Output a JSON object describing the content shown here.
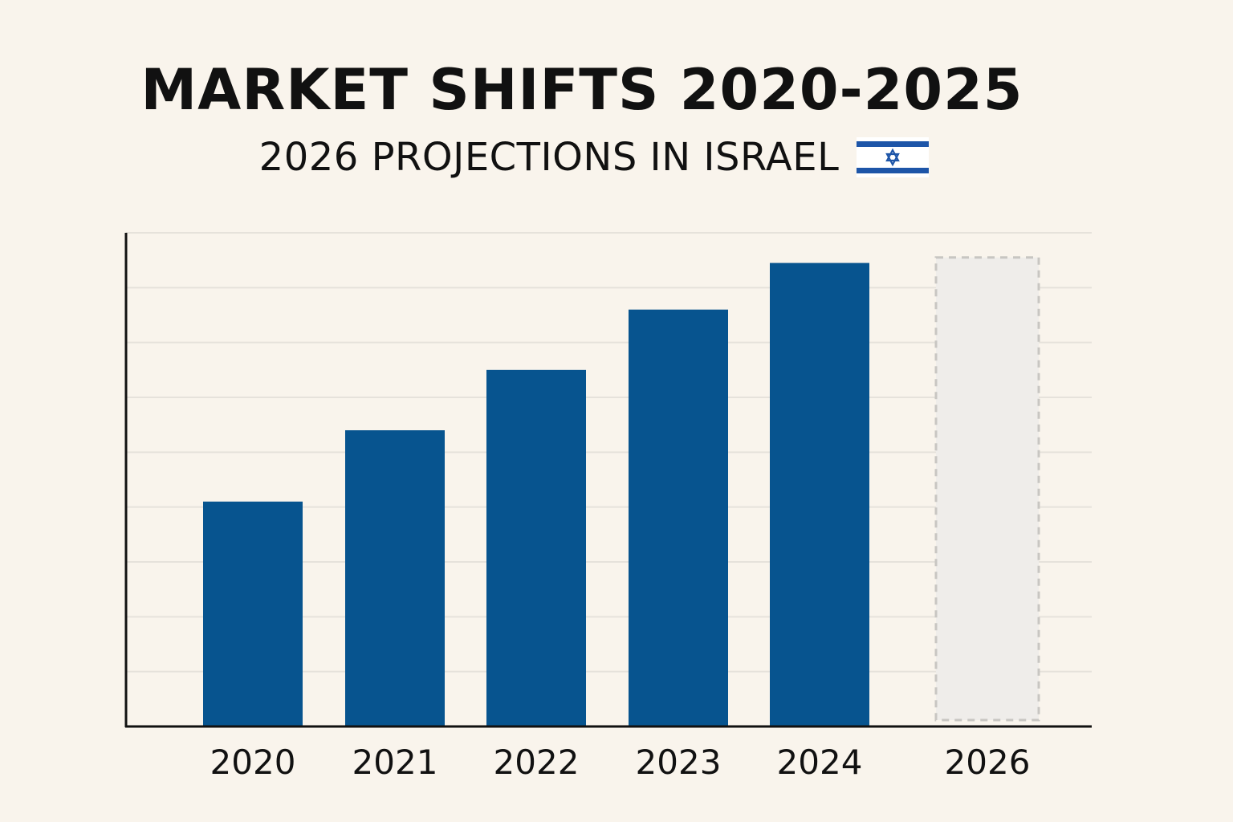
{
  "title": "MARKET SHIFTS 2020-2025",
  "subtitle": "2026 PROJECTIONS IN ISRAEL",
  "flag_icon": "israel-flag-icon",
  "colors": {
    "background": "#f9f4ec",
    "bar": "#07548f",
    "projection_fill": "#efedea",
    "projection_border": "#c8c6c2",
    "gridline": "#e6e2db",
    "axis": "#111111",
    "flag_blue": "#1d55a8"
  },
  "chart_data": {
    "type": "bar",
    "categories": [
      "2020",
      "2021",
      "2022",
      "2023",
      "2024",
      "2026"
    ],
    "values": [
      41,
      54,
      65,
      76,
      84.5,
      85.5
    ],
    "projected": [
      false,
      false,
      false,
      false,
      false,
      true
    ],
    "ylim": [
      0,
      90
    ],
    "grid": true,
    "y_tick_labels": false,
    "xlabel": "",
    "ylabel": ""
  }
}
